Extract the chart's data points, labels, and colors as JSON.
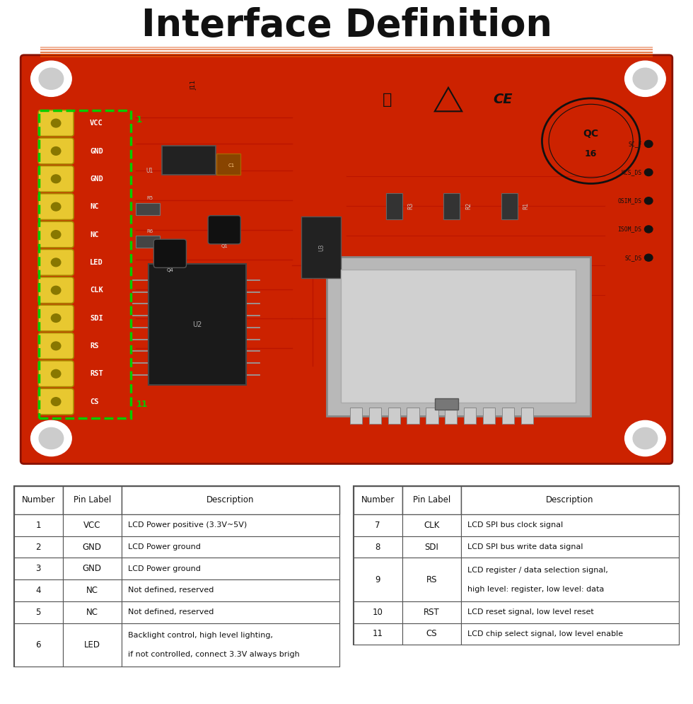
{
  "title": "Interface Definition",
  "title_fontsize": 38,
  "title_fontweight": "bold",
  "bg_color": "#ffffff",
  "table_left": {
    "headers": [
      "Number",
      "Pin Label",
      "Description"
    ],
    "rows": [
      [
        "1",
        "VCC",
        "LCD Power positive (3.3V~5V)"
      ],
      [
        "2",
        "GND",
        "LCD Power ground"
      ],
      [
        "3",
        "GND",
        "LCD Power ground"
      ],
      [
        "4",
        "NC",
        "Not defined, reserved"
      ],
      [
        "5",
        "NC",
        "Not defined, reserved"
      ],
      [
        "6",
        "LED",
        "Backlight control, high level lighting,\nif not controlled, connect 3.3V always brigh"
      ]
    ]
  },
  "table_right": {
    "headers": [
      "Number",
      "Pin Label",
      "Description"
    ],
    "rows": [
      [
        "7",
        "CLK",
        "LCD SPI bus clock signal"
      ],
      [
        "8",
        "SDI",
        "LCD SPI bus write data signal"
      ],
      [
        "9",
        "RS",
        "LCD register / data selection signal,\nhigh level: register, low level: data"
      ],
      [
        "10",
        "RST",
        "LCD reset signal, low level reset"
      ],
      [
        "11",
        "CS",
        "LCD chip select signal, low level enable"
      ]
    ]
  },
  "pin_labels": [
    "VCC",
    "GND",
    "GND",
    "NC",
    "NC",
    "LED",
    "CLK",
    "SDI",
    "RS",
    "RST",
    "CS"
  ],
  "pcb_bg_color": "#cc2200",
  "pin_color": "#e8c830",
  "green_dash_color": "#00cc00",
  "title_underline_color": "#dd4400"
}
